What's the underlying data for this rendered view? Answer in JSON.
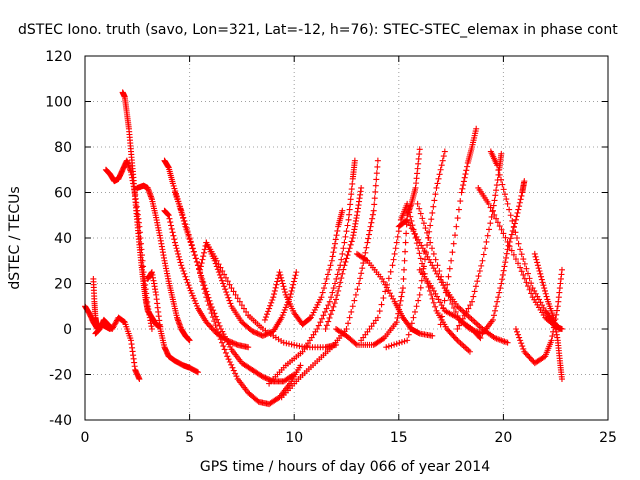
{
  "chart_data": {
    "type": "scatter",
    "title": "dSTEC Iono. truth (savo, Lon=321, Lat=-12, h=76): STEC-STEC_elemax in phase cont",
    "xlabel": "GPS time / hours of day 066 of year 2014",
    "ylabel": "dSTEC  / TECUs",
    "xlim": [
      0,
      25
    ],
    "ylim": [
      -40,
      120
    ],
    "xticks": [
      0,
      5,
      10,
      15,
      20,
      25
    ],
    "yticks": [
      -40,
      -20,
      0,
      20,
      40,
      60,
      80,
      100,
      120
    ],
    "grid": true,
    "marker": "plus",
    "color": "#ff0000",
    "series": [
      {
        "points": [
          [
            0.0,
            10
          ],
          [
            0.2,
            7
          ],
          [
            0.4,
            3
          ],
          [
            0.6,
            0
          ],
          [
            0.8,
            2
          ],
          [
            1.0,
            1
          ],
          [
            1.2,
            0
          ]
        ]
      },
      {
        "points": [
          [
            0.4,
            22
          ],
          [
            0.45,
            12
          ],
          [
            0.5,
            5
          ],
          [
            0.55,
            2
          ],
          [
            0.6,
            1
          ]
        ]
      },
      {
        "points": [
          [
            0.5,
            -2
          ],
          [
            0.7,
            0
          ],
          [
            0.9,
            4
          ],
          [
            1.1,
            2
          ],
          [
            1.3,
            0
          ],
          [
            1.6,
            5
          ],
          [
            1.9,
            3
          ],
          [
            2.2,
            -5
          ],
          [
            2.4,
            -18
          ],
          [
            2.6,
            -22
          ]
        ]
      },
      {
        "points": [
          [
            1.0,
            70
          ],
          [
            1.2,
            68
          ],
          [
            1.4,
            65
          ],
          [
            1.6,
            66
          ],
          [
            1.8,
            70
          ],
          [
            2.0,
            74
          ],
          [
            2.2,
            69
          ],
          [
            2.4,
            59
          ],
          [
            2.6,
            45
          ],
          [
            2.8,
            25
          ],
          [
            3.0,
            10
          ],
          [
            3.2,
            0
          ]
        ]
      },
      {
        "points": [
          [
            1.8,
            104
          ],
          [
            1.9,
            102
          ],
          [
            2.0,
            95
          ],
          [
            2.1,
            88
          ],
          [
            2.2,
            78
          ],
          [
            2.3,
            68
          ],
          [
            2.4,
            57
          ],
          [
            2.5,
            47
          ],
          [
            2.6,
            37
          ],
          [
            2.7,
            28
          ],
          [
            2.8,
            20
          ],
          [
            2.9,
            13
          ],
          [
            3.0,
            8
          ],
          [
            3.2,
            5
          ],
          [
            3.4,
            2
          ],
          [
            3.6,
            1
          ]
        ]
      },
      {
        "points": [
          [
            2.5,
            62
          ],
          [
            2.8,
            63
          ],
          [
            3.0,
            62
          ],
          [
            3.2,
            57
          ],
          [
            3.4,
            49
          ],
          [
            3.6,
            40
          ],
          [
            3.8,
            30
          ],
          [
            4.0,
            21
          ],
          [
            4.2,
            13
          ],
          [
            4.4,
            5
          ],
          [
            4.6,
            0
          ],
          [
            4.8,
            -3
          ],
          [
            5.0,
            -5
          ]
        ]
      },
      {
        "points": [
          [
            3.0,
            22
          ],
          [
            3.2,
            25
          ],
          [
            3.4,
            15
          ],
          [
            3.6,
            0
          ],
          [
            3.8,
            -8
          ],
          [
            4.0,
            -12
          ],
          [
            4.3,
            -14
          ],
          [
            4.7,
            -16
          ],
          [
            5.0,
            -17
          ],
          [
            5.4,
            -19
          ]
        ]
      },
      {
        "points": [
          [
            3.8,
            52
          ],
          [
            4.0,
            50
          ],
          [
            4.3,
            38
          ],
          [
            4.6,
            28
          ],
          [
            5.0,
            18
          ],
          [
            5.4,
            9
          ],
          [
            5.8,
            3
          ],
          [
            6.3,
            -2
          ],
          [
            6.8,
            -5
          ],
          [
            7.3,
            -7
          ],
          [
            7.8,
            -8
          ]
        ]
      },
      {
        "points": [
          [
            3.8,
            74
          ],
          [
            4.0,
            71
          ],
          [
            4.2,
            64
          ],
          [
            4.5,
            55
          ],
          [
            4.8,
            45
          ],
          [
            5.2,
            34
          ],
          [
            5.6,
            22
          ],
          [
            6.0,
            11
          ],
          [
            6.5,
            0
          ],
          [
            7.0,
            -9
          ],
          [
            7.5,
            -15
          ],
          [
            8.0,
            -18
          ],
          [
            8.5,
            -21
          ],
          [
            9.0,
            -23
          ],
          [
            9.5,
            -23
          ],
          [
            10.0,
            -20
          ]
        ]
      },
      {
        "points": [
          [
            4.3,
            60
          ],
          [
            4.6,
            52
          ],
          [
            5.0,
            40
          ],
          [
            5.4,
            28
          ],
          [
            5.8,
            14
          ],
          [
            6.3,
            0
          ],
          [
            6.8,
            -12
          ],
          [
            7.3,
            -22
          ],
          [
            7.8,
            -28
          ],
          [
            8.3,
            -32
          ],
          [
            8.8,
            -33
          ],
          [
            9.3,
            -30
          ],
          [
            9.8,
            -24
          ],
          [
            10.3,
            -16
          ]
        ]
      },
      {
        "points": [
          [
            5.5,
            26
          ],
          [
            5.8,
            38
          ],
          [
            6.2,
            30
          ],
          [
            6.6,
            20
          ],
          [
            7.0,
            10
          ],
          [
            7.5,
            3
          ],
          [
            8.0,
            -1
          ],
          [
            8.5,
            -3
          ],
          [
            9.0,
            -1
          ],
          [
            9.4,
            5
          ],
          [
            9.8,
            14
          ],
          [
            10.1,
            25
          ]
        ]
      },
      {
        "points": [
          [
            5.8,
            38
          ],
          [
            6.3,
            30
          ],
          [
            7.0,
            18
          ],
          [
            7.8,
            6
          ],
          [
            8.5,
            0
          ],
          [
            9.5,
            -6
          ],
          [
            10.5,
            -8
          ],
          [
            11.5,
            -8
          ],
          [
            12.0,
            -7
          ]
        ]
      },
      {
        "points": [
          [
            8.6,
            4
          ],
          [
            9.0,
            14
          ],
          [
            9.3,
            25
          ],
          [
            9.6,
            15
          ],
          [
            10.0,
            7
          ],
          [
            10.4,
            2
          ],
          [
            10.8,
            5
          ],
          [
            11.3,
            14
          ],
          [
            11.8,
            30
          ],
          [
            12.1,
            45
          ],
          [
            12.3,
            52
          ]
        ]
      },
      {
        "points": [
          [
            8.8,
            -24
          ],
          [
            9.6,
            -16
          ],
          [
            10.4,
            -10
          ],
          [
            11.1,
            0
          ],
          [
            11.7,
            12
          ],
          [
            12.2,
            28
          ],
          [
            12.6,
            48
          ],
          [
            12.8,
            66
          ],
          [
            12.9,
            74
          ]
        ]
      },
      {
        "points": [
          [
            9.4,
            -30
          ],
          [
            10.2,
            -22
          ],
          [
            11.0,
            -15
          ],
          [
            11.8,
            -8
          ],
          [
            12.5,
            0
          ],
          [
            13.1,
            20
          ],
          [
            13.5,
            38
          ],
          [
            13.8,
            52
          ],
          [
            14.0,
            74
          ]
        ]
      },
      {
        "points": [
          [
            11.5,
            0
          ],
          [
            12.0,
            13
          ],
          [
            12.4,
            28
          ],
          [
            12.8,
            40
          ],
          [
            13.0,
            50
          ],
          [
            13.2,
            62
          ]
        ]
      },
      {
        "points": [
          [
            12.0,
            0
          ],
          [
            12.5,
            -3
          ],
          [
            13.0,
            -7
          ],
          [
            13.8,
            -7
          ],
          [
            14.3,
            -4
          ],
          [
            14.9,
            3
          ],
          [
            15.2,
            18
          ],
          [
            15.4,
            50
          ],
          [
            15.6,
            55
          ],
          [
            15.8,
            62
          ],
          [
            16.0,
            79
          ]
        ]
      },
      {
        "points": [
          [
            13.0,
            33
          ],
          [
            13.5,
            30
          ],
          [
            14.2,
            22
          ],
          [
            14.8,
            12
          ],
          [
            15.2,
            5
          ],
          [
            15.6,
            0
          ],
          [
            16.0,
            -2
          ],
          [
            16.6,
            -3
          ]
        ]
      },
      {
        "points": [
          [
            13.2,
            -5
          ],
          [
            14.0,
            5
          ],
          [
            14.7,
            28
          ],
          [
            15.1,
            48
          ],
          [
            15.4,
            55
          ],
          [
            15.8,
            40
          ],
          [
            16.3,
            22
          ],
          [
            16.8,
            8
          ],
          [
            17.3,
            0
          ],
          [
            17.8,
            -5
          ],
          [
            18.4,
            -10
          ]
        ]
      },
      {
        "points": [
          [
            14.4,
            -8
          ],
          [
            15.4,
            -5
          ],
          [
            16.0,
            15
          ],
          [
            16.4,
            40
          ],
          [
            16.8,
            62
          ],
          [
            17.2,
            78
          ]
        ]
      },
      {
        "points": [
          [
            15.0,
            45
          ],
          [
            15.4,
            48
          ],
          [
            16.0,
            38
          ],
          [
            16.6,
            28
          ],
          [
            17.2,
            18
          ],
          [
            17.8,
            10
          ],
          [
            18.4,
            5
          ],
          [
            19.0,
            0
          ],
          [
            19.6,
            -4
          ],
          [
            20.2,
            -6
          ]
        ]
      },
      {
        "points": [
          [
            15.9,
            55
          ],
          [
            16.5,
            38
          ],
          [
            17.2,
            18
          ],
          [
            17.9,
            4
          ],
          [
            18.5,
            0
          ],
          [
            18.9,
            -4
          ]
        ]
      },
      {
        "points": [
          [
            16.0,
            26
          ],
          [
            16.6,
            18
          ],
          [
            17.2,
            8
          ],
          [
            17.8,
            5
          ],
          [
            18.4,
            0
          ],
          [
            19.0,
            -2
          ],
          [
            19.5,
            4
          ],
          [
            19.9,
            20
          ],
          [
            20.2,
            35
          ],
          [
            20.6,
            48
          ],
          [
            20.9,
            60
          ],
          [
            21.0,
            65
          ]
        ]
      },
      {
        "points": [
          [
            17.0,
            2
          ],
          [
            17.5,
            30
          ],
          [
            18.0,
            60
          ],
          [
            18.3,
            73
          ],
          [
            18.5,
            80
          ],
          [
            18.7,
            88
          ]
        ]
      },
      {
        "points": [
          [
            17.8,
            0
          ],
          [
            18.5,
            12
          ],
          [
            19.0,
            30
          ],
          [
            19.5,
            52
          ],
          [
            19.8,
            70
          ],
          [
            19.9,
            77
          ]
        ]
      },
      {
        "points": [
          [
            19.4,
            78
          ],
          [
            19.7,
            72
          ],
          [
            20.2,
            55
          ],
          [
            20.8,
            35
          ],
          [
            21.4,
            18
          ],
          [
            22.0,
            8
          ],
          [
            22.4,
            3
          ],
          [
            22.7,
            0
          ]
        ]
      },
      {
        "points": [
          [
            18.8,
            62
          ],
          [
            19.3,
            55
          ],
          [
            20.0,
            42
          ],
          [
            20.8,
            27
          ],
          [
            21.4,
            14
          ],
          [
            22.0,
            5
          ],
          [
            22.5,
            1
          ],
          [
            22.8,
            0
          ]
        ]
      },
      {
        "points": [
          [
            20.6,
            0
          ],
          [
            21.0,
            -10
          ],
          [
            21.5,
            -15
          ],
          [
            22.0,
            -12
          ],
          [
            22.3,
            -5
          ],
          [
            22.6,
            10
          ],
          [
            22.8,
            26
          ]
        ]
      },
      {
        "points": [
          [
            21.5,
            33
          ],
          [
            21.8,
            23
          ],
          [
            22.1,
            13
          ],
          [
            22.4,
            5
          ],
          [
            22.6,
            -5
          ],
          [
            22.7,
            -14
          ],
          [
            22.8,
            -22
          ]
        ]
      }
    ]
  }
}
